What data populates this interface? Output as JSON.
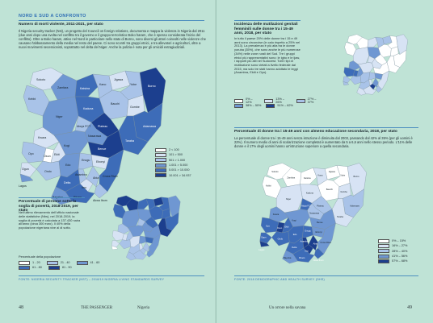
{
  "left_page": {
    "kicker": "NORD E SUD A CONFRONTO",
    "violence": {
      "heading": "Numero di morti violente, 2011-2021, per stato",
      "body": "Il Nigeria security tracker (Nst), un progetto del Council on foreign relations, documenta e mappa la violenza in Nigeria dal 2011 (due anni dopo una svolta nel conflitto tra il governo e il gruppo terroristico Boko haram, che è spesso considerata l'inizio del conflitto). Oltre a Boko haram, attivo nel Nord in particolare nello stato di Borno, sono diversi gli attori coinvolti nelle violenze che causano l'abbassamento della media nel resto del paese. Ci sono scontri tra gruppi etnici, e tra allevatori e agricoltori, oltre a nuovi movimenti secessionisti, soprattutto nel delta del Niger. Anche la polizia è nota per gli omicidi extragiudiziali.",
      "legend": [
        "2 < 100",
        "101 > 500",
        "501 > 1.000",
        "1.001 > 5.000",
        "5.001 > 10.000",
        "10.001 > 34.937"
      ]
    },
    "poverty": {
      "heading": "Percentuale di persone sotto la soglia di povertà, 2018-2019, per stato",
      "body": "Nell'ultimo rilevamento dell'ufficio nazionale delle statistiche (Nbs), nel 2018-2019, la soglia di povertà è calcolata a 137.430 naira all'anno (circa 300 euro). Il 40% della popolazione nigeriana vive al di sotto.",
      "legend_title": "Percentuale della popolazione",
      "legend": [
        "1 - 20",
        "21 - 40",
        "41 - 60",
        "61 - 80",
        "81 - 90"
      ]
    },
    "source": "FONTE: NIGERIA SECURITY TRACKER (NST) – 2018/19 NIGERIA LIVING STANDARDS SURVEY",
    "folio_num": "48",
    "folio_mag": "THE PASSENGER",
    "folio_title": "Nigeria"
  },
  "right_page": {
    "fgm": {
      "heading": "Incidenza delle mutilazioni genitali femminili sulle donne tra i 15-49 anni, 2018, per stato",
      "body": "In tutto il paese 20% delle donne tra i 15 e 49 anni sono circoncise (in calo rispetto a 25% nel 2013). La prevalenza è più alta tra le donne yoruba (35%), che sono anche le più numerose (34%) nelle zone rurali del Sud. Tre i gruppi etnici più rappresentativi sono: le igbo e le ijaw, i rapporti più alti nel Sudovest. Tutti i tipi di mutilazione sono vietati a livello federale dal 2015, ma solo tre stati hanno adottato le leggi (Anambra, Ekiti e Oyo).",
      "legend": [
        "0% – 12%",
        "13% – 26%",
        "27% – 37%",
        "38% – 50%",
        "51% – 62%"
      ]
    },
    "education": {
      "heading": "Percentuale di donne tra i 15-49 anni con almeno educazione secondaria, 2018, per stato",
      "body": "La percentuale di donne tra i 15-49 anni senza istruzione è diminuita dal 2003, passando dal 42% al 35% (per gli uomini è 22%). Il numero medio di anni di scolarizzazione completati è aumentato da 5 a 6,6 anni nello stesso periodo. L'11% delle donne e il 17% degli uomini hanno un'istruzione superiore a quella secondaria.",
      "legend": [
        "0% – 15%",
        "16% – 27%",
        "28% – 40%",
        "41% – 56%",
        "57% – 68%"
      ]
    },
    "source": "FONTE: 2018 DEMOGRAPHIC AND HEALTH SURVEY (DHS)",
    "folio_left": "Un orrore nella savana",
    "folio_num": "49"
  },
  "map_labels": [
    "Sokoto",
    "Zamfara",
    "Katsina",
    "Kano",
    "Jigawa",
    "Yobe",
    "Borno",
    "Kebbi",
    "Kaduna",
    "Bauchi",
    "Gombe",
    "Adamawa",
    "Niger",
    "Plateau",
    "Taraba",
    "Nasarawa",
    "Kwara",
    "Oyo",
    "Kogi",
    "Benue",
    "Ogun",
    "Osun",
    "Ekiti",
    "Ondo",
    "Edo",
    "Enugu",
    "Ebonyi",
    "Lagos",
    "Delta",
    "Anambra",
    "Imo",
    "Cross River",
    "Bayelsa",
    "Rivers",
    "Abia",
    "Akwa Ibom",
    "Abuja FCT"
  ],
  "colors": {
    "c1": "#ffffff",
    "c2": "#d7e3f4",
    "c3": "#a9c3e8",
    "c4": "#6f97d2",
    "c5": "#3d6cb8",
    "c6": "#1c3f8e",
    "page_bg": "#bfe3d6",
    "accent": "#2f6fb5"
  }
}
